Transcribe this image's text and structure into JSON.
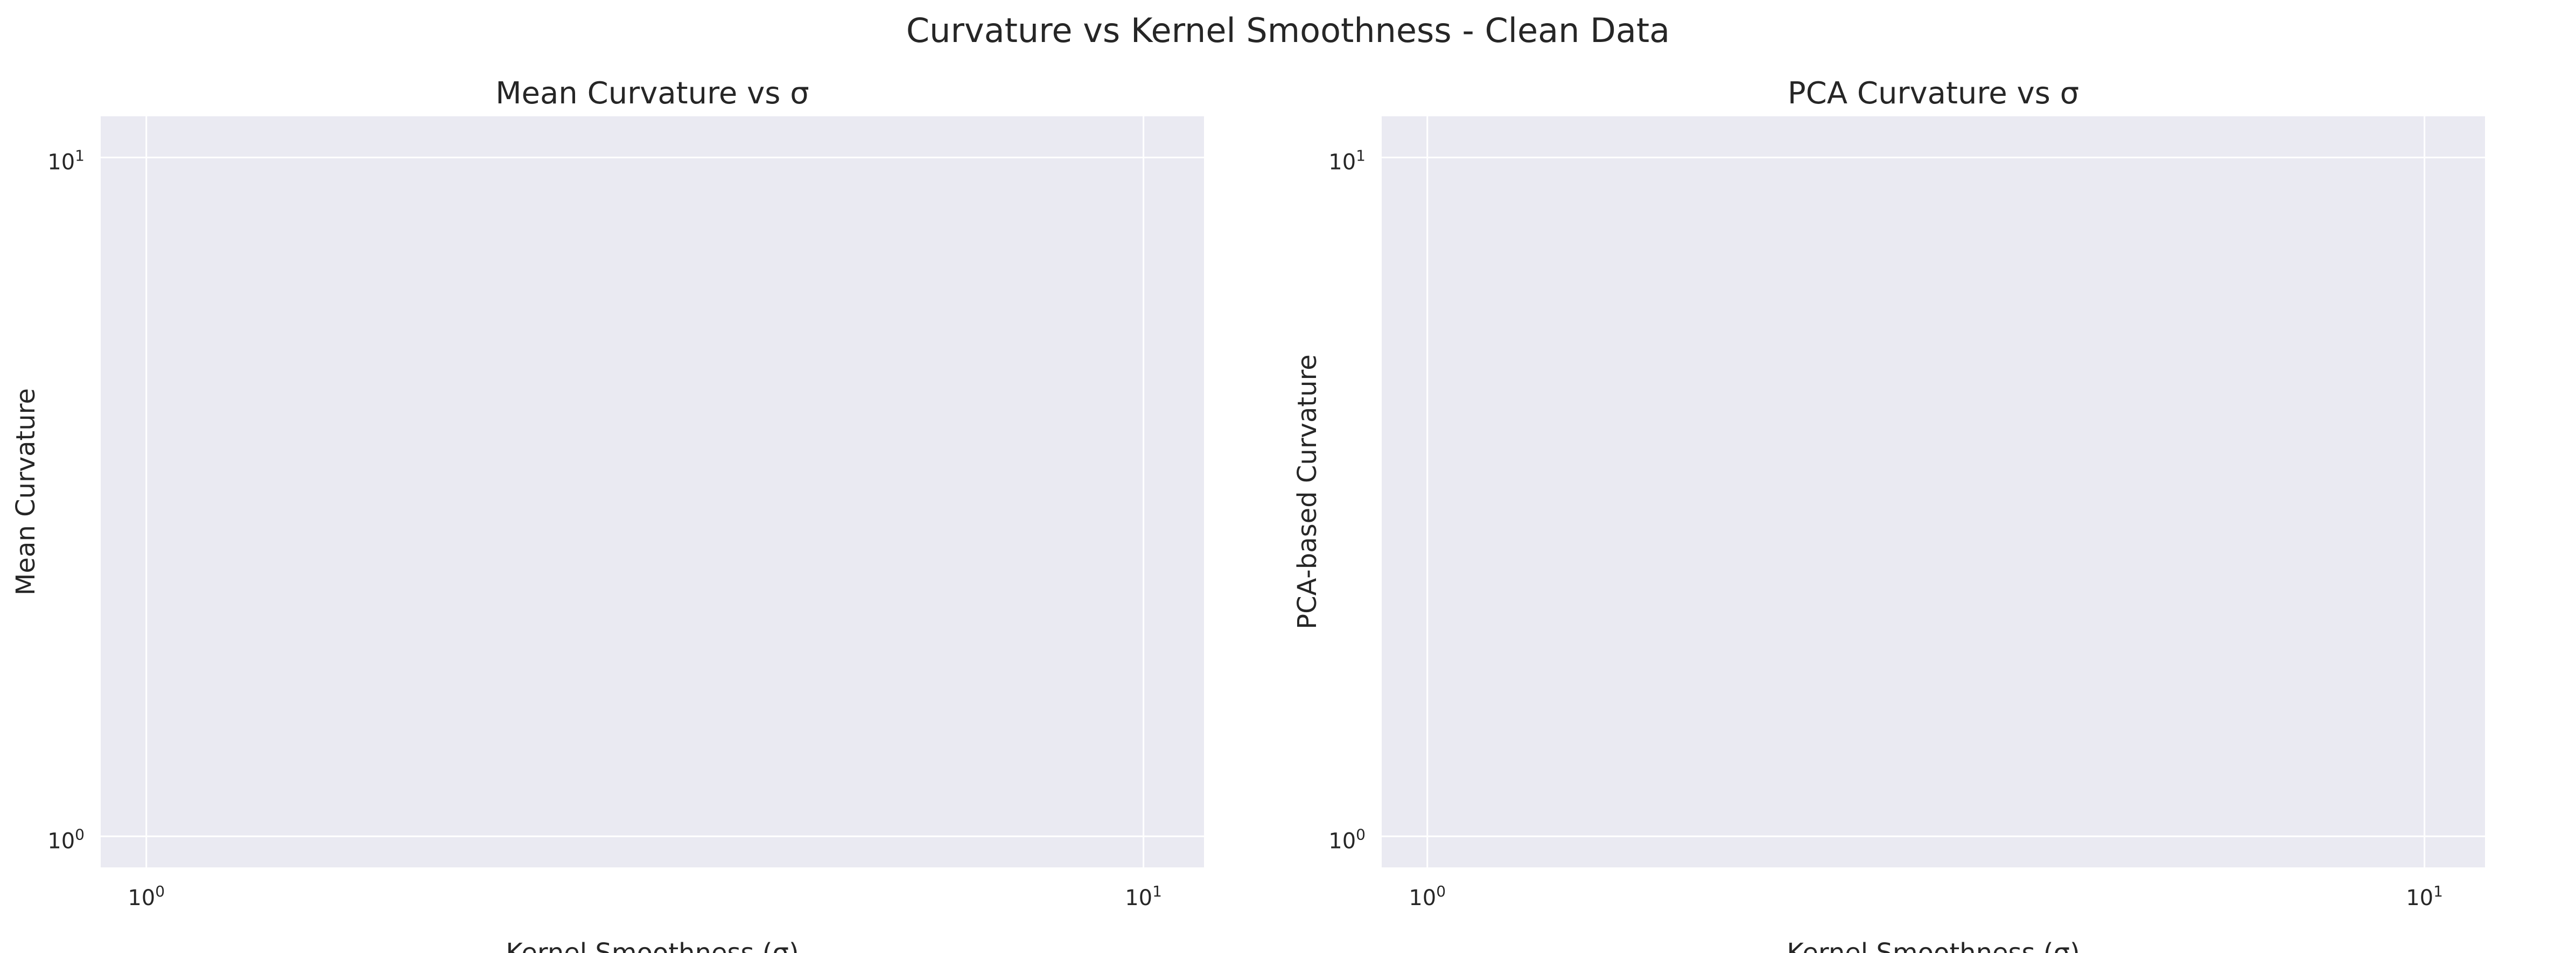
{
  "figure": {
    "suptitle": "Curvature vs Kernel Smoothness - Clean Data"
  },
  "colors": {
    "axes_facecolor": "#eaeaf2",
    "grid_color": "#ffffff",
    "text_color": "#262626",
    "figure_background": "#ffffff"
  },
  "chart_data": [
    {
      "type": "line",
      "title": "Mean Curvature vs σ",
      "xlabel": "Kernel Smoothness (σ)",
      "ylabel": "Mean Curvature",
      "xscale": "log",
      "yscale": "log",
      "xlim": [
        0.9,
        11.5
      ],
      "ylim": [
        0.9,
        11.5
      ],
      "xticks": [
        {
          "value": 1,
          "base": "10",
          "exp": "0"
        },
        {
          "value": 10,
          "base": "10",
          "exp": "1"
        }
      ],
      "yticks": [
        {
          "value": 1,
          "base": "10",
          "exp": "0"
        },
        {
          "value": 10,
          "base": "10",
          "exp": "1"
        }
      ],
      "grid": true,
      "series": []
    },
    {
      "type": "line",
      "title": "PCA Curvature vs σ",
      "xlabel": "Kernel Smoothness (σ)",
      "ylabel": "PCA-based Curvature",
      "xscale": "log",
      "yscale": "log",
      "xlim": [
        0.9,
        11.5
      ],
      "ylim": [
        0.9,
        11.5
      ],
      "xticks": [
        {
          "value": 1,
          "base": "10",
          "exp": "0"
        },
        {
          "value": 10,
          "base": "10",
          "exp": "1"
        }
      ],
      "yticks": [
        {
          "value": 1,
          "base": "10",
          "exp": "0"
        },
        {
          "value": 10,
          "base": "10",
          "exp": "1"
        }
      ],
      "grid": true,
      "series": []
    }
  ]
}
